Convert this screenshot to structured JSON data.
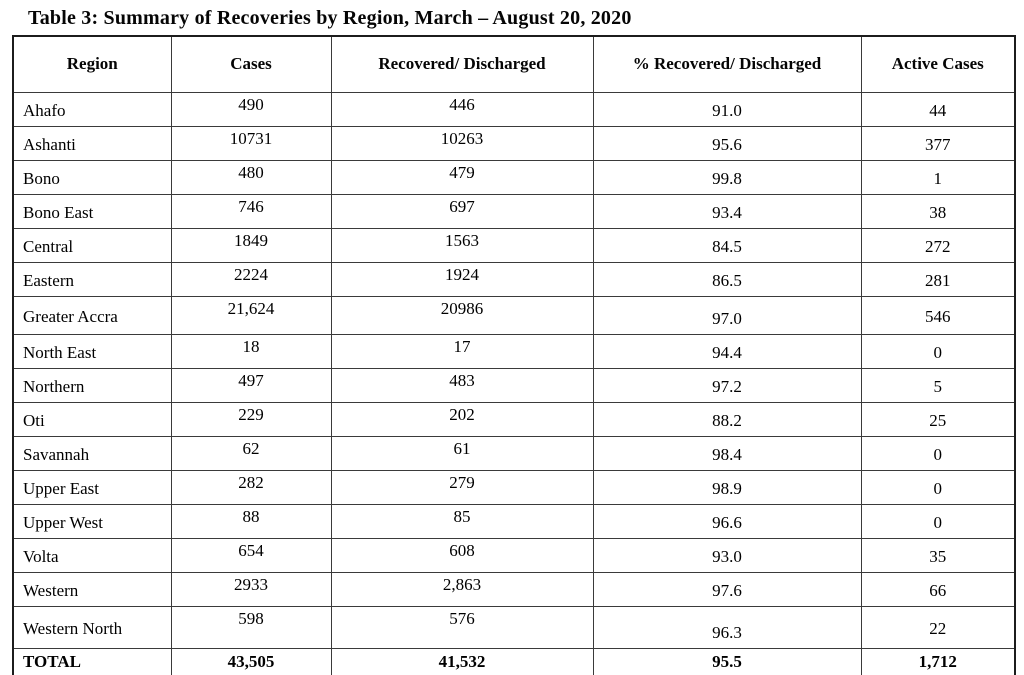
{
  "title": "Table 3: Summary of Recoveries by Region, March – August 20, 2020",
  "table": {
    "headers": {
      "region": "Region",
      "cases": "Cases",
      "recovered": "Recovered/ Discharged",
      "pct_recovered": "% Recovered/ Discharged",
      "active": "Active Cases"
    },
    "rows": [
      {
        "region": "Ahafo",
        "cases": "490",
        "recovered": "446",
        "pct": "91.0",
        "active": "44"
      },
      {
        "region": "Ashanti",
        "cases": "10731",
        "recovered": "10263",
        "pct": "95.6",
        "active": "377"
      },
      {
        "region": "Bono",
        "cases": "480",
        "recovered": "479",
        "pct": "99.8",
        "active": "1"
      },
      {
        "region": "Bono East",
        "cases": "746",
        "recovered": "697",
        "pct": "93.4",
        "active": "38"
      },
      {
        "region": "Central",
        "cases": "1849",
        "recovered": "1563",
        "pct": "84.5",
        "active": "272"
      },
      {
        "region": "Eastern",
        "cases": "2224",
        "recovered": "1924",
        "pct": "86.5",
        "active": "281"
      },
      {
        "region": "Greater Accra",
        "cases": "21,624",
        "recovered": "20986",
        "pct": "97.0",
        "active": "546"
      },
      {
        "region": "North East",
        "cases": "18",
        "recovered": "17",
        "pct": "94.4",
        "active": "0"
      },
      {
        "region": "Northern",
        "cases": "497",
        "recovered": "483",
        "pct": "97.2",
        "active": "5"
      },
      {
        "region": "Oti",
        "cases": "229",
        "recovered": "202",
        "pct": "88.2",
        "active": "25"
      },
      {
        "region": "Savannah",
        "cases": "62",
        "recovered": "61",
        "pct": "98.4",
        "active": "0"
      },
      {
        "region": "Upper East",
        "cases": "282",
        "recovered": "279",
        "pct": "98.9",
        "active": "0"
      },
      {
        "region": "Upper West",
        "cases": "88",
        "recovered": "85",
        "pct": "96.6",
        "active": "0"
      },
      {
        "region": "Volta",
        "cases": "654",
        "recovered": "608",
        "pct": "93.0",
        "active": "35"
      },
      {
        "region": "Western",
        "cases": "2933",
        "recovered": "2,863",
        "pct": "97.6",
        "active": "66"
      },
      {
        "region": "Western North",
        "cases": "598",
        "recovered": "576",
        "pct": "96.3",
        "active": "22"
      }
    ],
    "total": {
      "region": "TOTAL",
      "cases": "43,505",
      "recovered": "41,532",
      "pct": "95.5",
      "active": "1,712"
    }
  }
}
